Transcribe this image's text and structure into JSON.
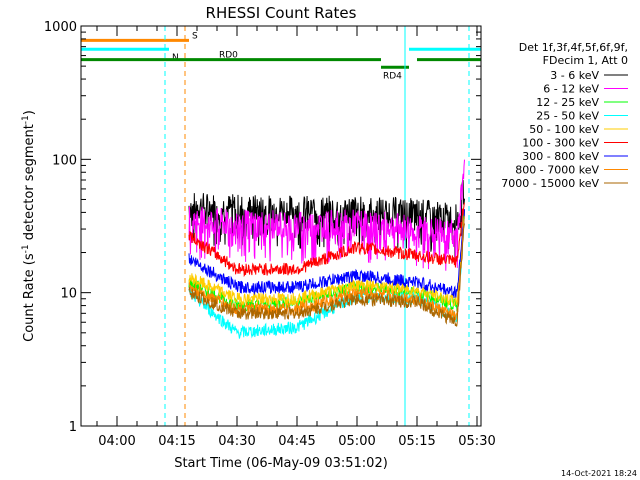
{
  "chart_data": {
    "type": "line",
    "title": "RHESSI Count Rates",
    "xlabel": "Start Time (06-May-09 03:51:02)",
    "ylabel": "Count Rate (s⁻¹ detector segment⁻¹)",
    "ylabel_main": "Count Rate (s",
    "ylabel_mid": " detector segment",
    "ylabel_end": ")",
    "ylabel_sup": "-1",
    "y_scale": "log",
    "ylim": [
      1,
      1000
    ],
    "xlim": [
      "03:51",
      "05:31"
    ],
    "x_ticks": [
      "04:00",
      "04:15",
      "04:30",
      "04:45",
      "05:00",
      "05:15",
      "05:30"
    ],
    "y_ticks": [
      "1",
      "10",
      "100",
      "1000"
    ],
    "grid": false,
    "legend_position": "right",
    "legend_header": [
      "Det 1f,3f,4f,5f,6f,9f,",
      "FDecim 1, Att 0"
    ],
    "x_start": "04:18",
    "x_end": "05:27",
    "series": [
      {
        "name": "3 - 6 keV",
        "color": "#000000",
        "x": [
          "04:18",
          "04:30",
          "04:45",
          "05:00",
          "05:15",
          "05:25",
          "05:27"
        ],
        "values": [
          45,
          43,
          42,
          42,
          40,
          36,
          65
        ]
      },
      {
        "name": "6 - 12 keV",
        "color": "#ff00ff",
        "x": [
          "04:18",
          "04:30",
          "04:45",
          "05:00",
          "05:15",
          "05:25",
          "05:27"
        ],
        "values": [
          35,
          33,
          32,
          33,
          30,
          28,
          95
        ]
      },
      {
        "name": "12 - 25 keV",
        "color": "#00ff00",
        "x": [
          "04:18",
          "04:30",
          "04:45",
          "05:00",
          "05:15",
          "05:25",
          "05:27"
        ],
        "values": [
          12,
          8,
          8.5,
          11,
          10,
          8,
          50
        ]
      },
      {
        "name": "25 - 50 keV",
        "color": "#00ffff",
        "x": [
          "04:18",
          "04:30",
          "04:45",
          "05:00",
          "05:15",
          "05:25",
          "05:27"
        ],
        "values": [
          10,
          5,
          5.5,
          9.5,
          9,
          6.5,
          40
        ]
      },
      {
        "name": "50 - 100 keV",
        "color": "#ffcc00",
        "x": [
          "04:18",
          "04:30",
          "04:45",
          "05:00",
          "05:15",
          "05:25",
          "05:27"
        ],
        "values": [
          13,
          9,
          9,
          11.5,
          10.5,
          8.5,
          45
        ]
      },
      {
        "name": "100 - 300 keV",
        "color": "#ff0000",
        "x": [
          "04:18",
          "04:30",
          "04:45",
          "05:00",
          "05:15",
          "05:25",
          "05:27"
        ],
        "values": [
          27,
          15,
          15,
          22,
          19,
          17,
          55
        ]
      },
      {
        "name": "300 - 800 keV",
        "color": "#0000ff",
        "x": [
          "04:18",
          "04:30",
          "04:45",
          "05:00",
          "05:15",
          "05:25",
          "05:27"
        ],
        "values": [
          18,
          11,
          11,
          13.5,
          12,
          10,
          45
        ]
      },
      {
        "name": "800 - 7000 keV",
        "color": "#ff8800",
        "x": [
          "04:18",
          "04:30",
          "04:45",
          "05:00",
          "05:15",
          "05:25",
          "05:27"
        ],
        "values": [
          11,
          7.5,
          7.5,
          10,
          9,
          6.5,
          42
        ]
      },
      {
        "name": "7000 - 15000 keV",
        "color": "#aa6600",
        "x": [
          "04:18",
          "04:30",
          "04:45",
          "05:00",
          "05:15",
          "05:25",
          "05:27"
        ],
        "values": [
          10,
          7,
          7,
          9,
          8.5,
          6,
          40
        ]
      }
    ],
    "flag_bars": [
      {
        "label": "S",
        "color": "#ff8800",
        "level": 780,
        "x0": "03:51",
        "x1": "04:18"
      },
      {
        "label": "N",
        "color": "#00ffff",
        "level": 670,
        "x0": "03:51",
        "x1": "04:13"
      },
      {
        "label": "",
        "color": "#00ffff",
        "level": 670,
        "x0": "05:13",
        "x1": "05:31"
      },
      {
        "label": "RD0",
        "color": "#008800",
        "level": 560,
        "x0": "03:51",
        "x1": "05:06"
      },
      {
        "label": "",
        "color": "#008800",
        "level": 560,
        "x0": "05:15",
        "x1": "05:31"
      },
      {
        "label": "RD4",
        "color": "#008800",
        "level": 490,
        "x0": "05:06",
        "x1": "05:13"
      }
    ],
    "vlines": [
      {
        "x": "03:51",
        "color": "#00ffff",
        "dashed": false
      },
      {
        "x": "04:12",
        "color": "#00ffff",
        "dashed": true
      },
      {
        "x": "04:17",
        "color": "#ff8800",
        "dashed": true
      },
      {
        "x": "05:12",
        "color": "#00ffff",
        "dashed": false
      },
      {
        "x": "05:28",
        "color": "#00ffff",
        "dashed": true
      }
    ]
  },
  "footer_timestamp": "14-Oct-2021 18:24"
}
